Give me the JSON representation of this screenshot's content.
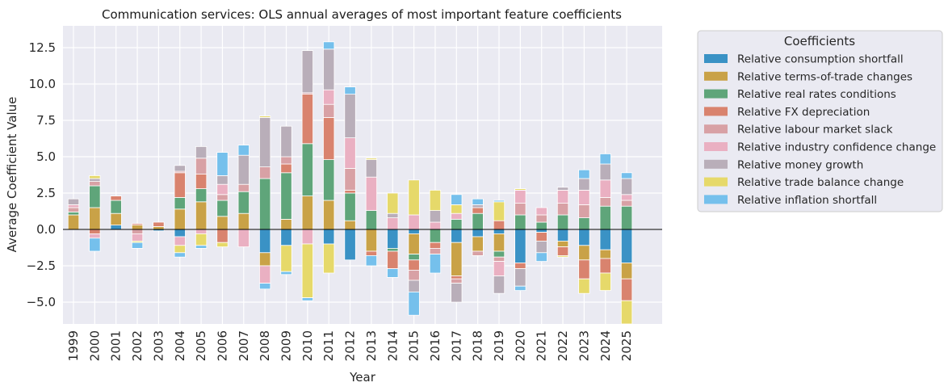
{
  "chart_data": {
    "type": "bar",
    "stacked": true,
    "diverging": true,
    "title": "Communication services: OLS annual averages of most important feature coefficients",
    "xlabel": "Year",
    "ylabel": "Average Coefficient Value",
    "ylim": [
      -6.5,
      14
    ],
    "yticks": [
      -5.0,
      -2.5,
      0.0,
      2.5,
      5.0,
      7.5,
      10.0,
      12.5
    ],
    "ytick_labels": [
      "−5.0",
      "−2.5",
      "0.0",
      "2.5",
      "5.0",
      "7.5",
      "10.0",
      "12.5"
    ],
    "grid": true,
    "legend_title": "Coefficients",
    "legend_position": "outside-upper-right",
    "categories": [
      "1999",
      "2000",
      "2001",
      "2002",
      "2003",
      "2004",
      "2005",
      "2006",
      "2007",
      "2008",
      "2009",
      "2010",
      "2011",
      "2012",
      "2013",
      "2014",
      "2015",
      "2016",
      "2017",
      "2018",
      "2019",
      "2020",
      "2021",
      "2022",
      "2023",
      "2024",
      "2025"
    ],
    "series": [
      {
        "name": "Relative consumption shortfall",
        "color": "#3a92c5",
        "values": [
          0,
          0,
          0.3,
          0,
          -0.1,
          -0.5,
          0,
          0,
          0,
          -1.6,
          -1.1,
          0,
          -1.0,
          -2.1,
          0,
          -1.3,
          -0.3,
          0,
          -0.9,
          -0.5,
          -0.3,
          -2.3,
          -0.2,
          -0.8,
          -1.1,
          -1.4,
          -2.3
        ]
      },
      {
        "name": "Relative terms-of-trade changes",
        "color": "#c9a247",
        "values": [
          1.0,
          1.5,
          0.8,
          0.3,
          0.2,
          1.4,
          1.9,
          0.9,
          1.1,
          -0.9,
          0.7,
          2.3,
          2.0,
          0.6,
          -1.5,
          0,
          -1.4,
          0,
          -2.3,
          -1.0,
          -1.2,
          0,
          0,
          -0.4,
          -1.0,
          -0.6,
          -1.1
        ]
      },
      {
        "name": "Relative real rates conditions",
        "color": "#5fa57a",
        "values": [
          0.2,
          1.5,
          0.9,
          0,
          0,
          0.8,
          0.9,
          1.1,
          1.5,
          3.5,
          3.2,
          3.6,
          2.8,
          1.9,
          1.3,
          -0.2,
          -0.4,
          -0.9,
          0.7,
          1.1,
          -0.4,
          1.0,
          0.5,
          1.0,
          0.8,
          1.6,
          1.6
        ]
      },
      {
        "name": "Relative FX depreciation",
        "color": "#d9836e",
        "values": [
          0,
          -0.3,
          0.3,
          0.1,
          0.3,
          1.7,
          1.0,
          -0.9,
          0,
          0,
          0.6,
          3.4,
          2.9,
          0.2,
          -0.3,
          -1.2,
          -0.7,
          -0.4,
          -0.2,
          0.4,
          0.6,
          -0.4,
          -0.6,
          -0.6,
          -1.3,
          -1.0,
          -1.5
        ]
      },
      {
        "name": "Relative labour market slack",
        "color": "#d8a1a5",
        "values": [
          0.3,
          0.3,
          0,
          -0.3,
          0,
          0.1,
          1.1,
          0.4,
          0.5,
          0.8,
          0.5,
          0.1,
          0.9,
          1.5,
          0,
          0,
          -0.7,
          -0.4,
          -0.3,
          -0.3,
          -0.3,
          0.8,
          0.5,
          0.8,
          0.9,
          0.6,
          0.4
        ]
      },
      {
        "name": "Relative industry confidence change",
        "color": "#eab0c2",
        "values": [
          0.2,
          -0.3,
          0,
          -0.5,
          0,
          -0.6,
          -0.3,
          0.7,
          -1.2,
          -1.2,
          0,
          -1.0,
          1.0,
          2.1,
          2.3,
          0.8,
          1.0,
          0.5,
          0.4,
          0,
          -1.0,
          0.9,
          0.5,
          0.9,
          1.0,
          1.2,
          0.4
        ]
      },
      {
        "name": "Relative money growth",
        "color": "#b9aeb9",
        "values": [
          0.4,
          0.2,
          0,
          0,
          0,
          0.4,
          0.8,
          0.6,
          2.0,
          3.4,
          2.1,
          2.9,
          2.8,
          3.0,
          1.2,
          0.3,
          -0.8,
          0.8,
          -1.3,
          0.2,
          -1.2,
          -1.2,
          -0.8,
          0.2,
          0.8,
          1.1,
          1.1
        ]
      },
      {
        "name": "Relative trade balance change",
        "color": "#e6d96a",
        "values": [
          0,
          0.2,
          0,
          -0.1,
          0,
          -0.5,
          -0.8,
          -0.3,
          0,
          0.1,
          -1.8,
          -3.7,
          -2.0,
          0,
          0.1,
          1.4,
          2.4,
          1.4,
          0.6,
          0,
          1.3,
          0.1,
          0,
          -0.1,
          -1.0,
          -1.2,
          -1.6
        ]
      },
      {
        "name": "Relative inflation shortfall",
        "color": "#75c0ec",
        "values": [
          0,
          -0.9,
          0,
          -0.4,
          0,
          -0.3,
          -0.2,
          1.6,
          0.7,
          -0.4,
          -0.2,
          -0.2,
          0.5,
          0.5,
          -0.7,
          -0.6,
          -1.6,
          -1.3,
          0.7,
          0.4,
          0.1,
          -0.3,
          -0.6,
          0,
          0.6,
          0.7,
          0.4
        ]
      }
    ]
  }
}
